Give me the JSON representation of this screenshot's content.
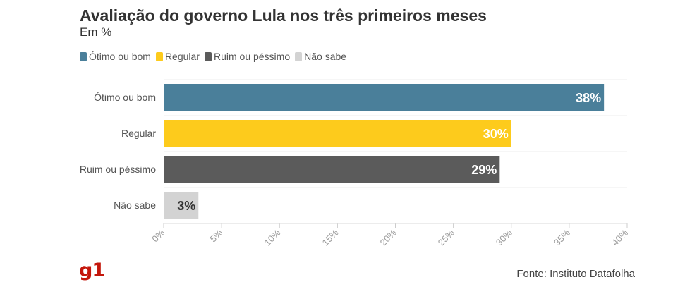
{
  "header": {
    "title": "Avaliação do governo Lula nos três primeiros meses",
    "subtitle": "Em %"
  },
  "legend": {
    "items": [
      {
        "label": "Ótimo ou bom",
        "color": "#4a7f9a"
      },
      {
        "label": "Regular",
        "color": "#fdcb1c"
      },
      {
        "label": "Ruim ou péssimo",
        "color": "#5b5b5b"
      },
      {
        "label": "Não sabe",
        "color": "#d3d3d3"
      }
    ]
  },
  "chart_data": {
    "type": "bar",
    "orientation": "horizontal",
    "title": "Avaliação do governo Lula nos três primeiros meses",
    "subtitle": "Em %",
    "categories": [
      "Ótimo ou bom",
      "Regular",
      "Ruim ou péssimo",
      "Não sabe"
    ],
    "values": [
      38,
      30,
      29,
      3
    ],
    "data_labels": [
      "38%",
      "30%",
      "29%",
      "3%"
    ],
    "colors": [
      "#4a7f9a",
      "#fdcb1c",
      "#5b5b5b",
      "#d3d3d3"
    ],
    "label_colors": [
      "#ffffff",
      "#ffffff",
      "#ffffff",
      "#333333"
    ],
    "xlim": [
      0,
      40
    ],
    "x_ticks": [
      0,
      5,
      10,
      15,
      20,
      25,
      30,
      35,
      40
    ],
    "x_tick_labels": [
      "0%",
      "5%",
      "10%",
      "15%",
      "20%",
      "25%",
      "30%",
      "35%",
      "40%"
    ],
    "xlabel": "",
    "ylabel": "",
    "grid": true,
    "legend_position": "top-left"
  },
  "footer": {
    "logo_text": "g1",
    "source": "Fonte: Instituto Datafolha"
  }
}
